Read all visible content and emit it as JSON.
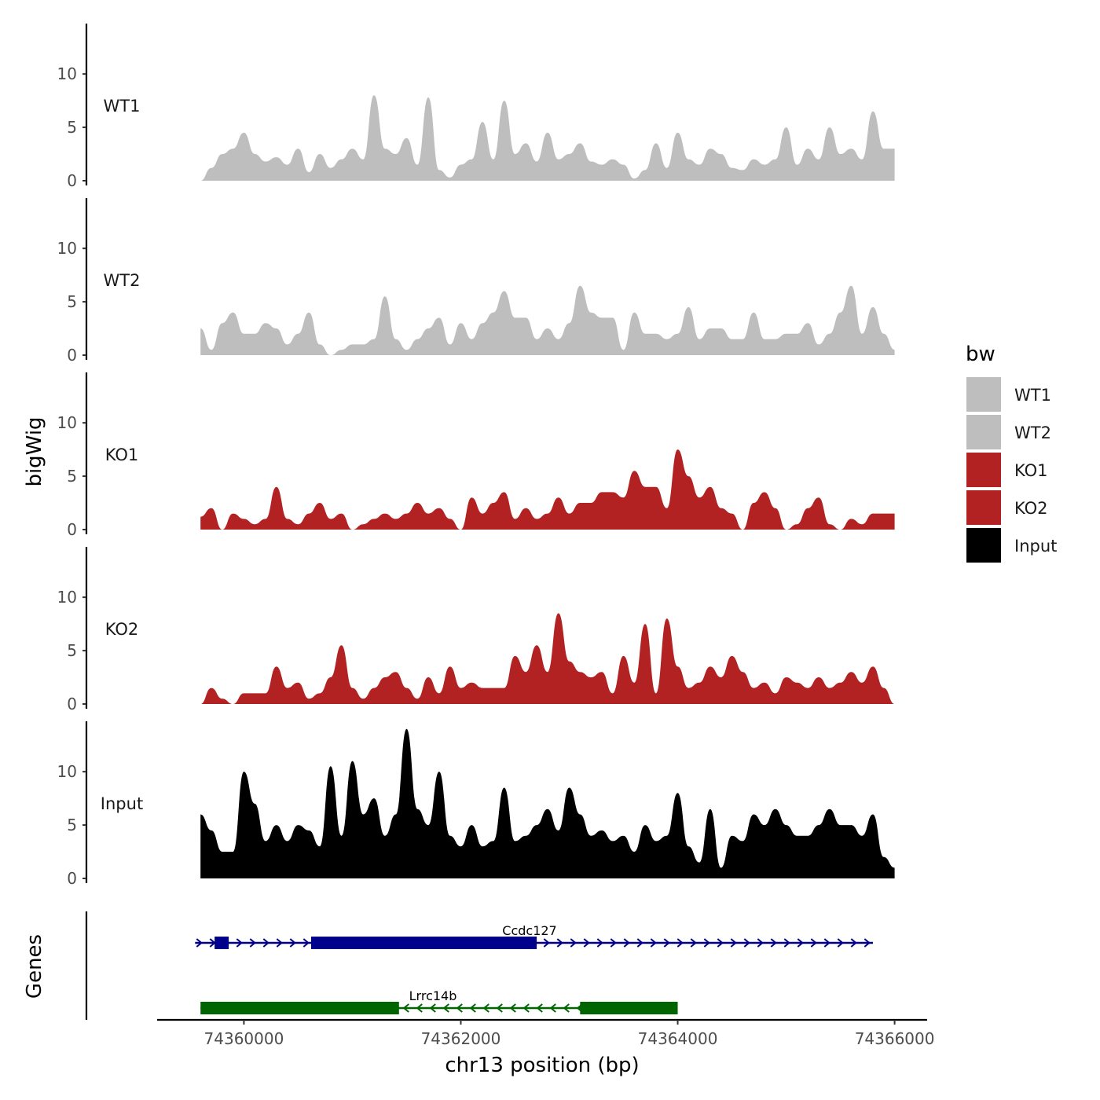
{
  "chart_data": {
    "type": "area",
    "title": "",
    "ylabel": "bigWig",
    "xlabel": "chr13 position (bp)",
    "xlim": [
      74359200,
      74366300
    ],
    "x_ticks": [
      74360000,
      74362000,
      74364000,
      74366000
    ],
    "x_tick_labels": [
      "74360000",
      "74362000",
      "74364000",
      "74366000"
    ],
    "ylim": [
      0,
      14.5
    ],
    "y_ticks": [
      0,
      5,
      10
    ],
    "y_tick_labels": [
      "0",
      "5",
      "10"
    ],
    "legend": {
      "title": "bw",
      "placement": "right",
      "entries": [
        {
          "label": "WT1",
          "color": "#bebebe"
        },
        {
          "label": "WT2",
          "color": "#bebebe"
        },
        {
          "label": "KO1",
          "color": "#b22222"
        },
        {
          "label": "KO2",
          "color": "#b22222"
        },
        {
          "label": "Input",
          "color": "#000000"
        }
      ]
    },
    "series": [
      {
        "name": "WT1",
        "color": "#bebebe",
        "x": [
          74359600,
          74359700,
          74359800,
          74359900,
          74360000,
          74360100,
          74360200,
          74360300,
          74360400,
          74360500,
          74360600,
          74360700,
          74360800,
          74360900,
          74361000,
          74361100,
          74361200,
          74361300,
          74361400,
          74361500,
          74361600,
          74361700,
          74361800,
          74361900,
          74362000,
          74362100,
          74362200,
          74362300,
          74362400,
          74362500,
          74362600,
          74362700,
          74362800,
          74362900,
          74363000,
          74363100,
          74363200,
          74363300,
          74363400,
          74363500,
          74363600,
          74363700,
          74363800,
          74363900,
          74364000,
          74364100,
          74364200,
          74364300,
          74364400,
          74364500,
          74364600,
          74364700,
          74364800,
          74364900,
          74365000,
          74365100,
          74365200,
          74365300,
          74365400,
          74365500,
          74365600,
          74365700,
          74365800,
          74365900,
          74366000
        ],
        "values": [
          0,
          1.2,
          2.5,
          3,
          4.5,
          2.5,
          1.8,
          2.2,
          1.5,
          3,
          0.8,
          2.5,
          1.2,
          2,
          3,
          2,
          8,
          3,
          2.5,
          4,
          1.5,
          7.8,
          1,
          0.3,
          1.5,
          2,
          5.5,
          2,
          7.5,
          2.5,
          3.5,
          1.8,
          4.5,
          2,
          2.5,
          3.5,
          1.8,
          1.5,
          2,
          1.5,
          0.2,
          1,
          3.5,
          1.2,
          4.5,
          2,
          1.5,
          3,
          2.5,
          1.2,
          1,
          2,
          1.5,
          2,
          5,
          1.5,
          3,
          2,
          5,
          2.5,
          3,
          2,
          6.5,
          3,
          3
        ]
      },
      {
        "name": "WT2",
        "color": "#bebebe",
        "x": [
          74359600,
          74359700,
          74359800,
          74359900,
          74360000,
          74360100,
          74360200,
          74360300,
          74360400,
          74360500,
          74360600,
          74360700,
          74360800,
          74360900,
          74361000,
          74361100,
          74361200,
          74361300,
          74361400,
          74361500,
          74361600,
          74361700,
          74361800,
          74361900,
          74362000,
          74362100,
          74362200,
          74362300,
          74362400,
          74362500,
          74362600,
          74362700,
          74362800,
          74362900,
          74363000,
          74363100,
          74363200,
          74363300,
          74363400,
          74363500,
          74363600,
          74363700,
          74363800,
          74363900,
          74364000,
          74364100,
          74364200,
          74364300,
          74364400,
          74364500,
          74364600,
          74364700,
          74364800,
          74364900,
          74365000,
          74365100,
          74365200,
          74365300,
          74365400,
          74365500,
          74365600,
          74365700,
          74365800,
          74365900,
          74366000
        ],
        "values": [
          2.5,
          0.5,
          3,
          4,
          2,
          2,
          3,
          2.5,
          1,
          2,
          4,
          1,
          0,
          0.5,
          1,
          1,
          1.5,
          5.5,
          1.5,
          0.5,
          1.5,
          2.5,
          3.5,
          1,
          3,
          1.5,
          3,
          4,
          6,
          3.5,
          3.5,
          1.5,
          2.5,
          1.5,
          3,
          6.5,
          4,
          3.5,
          3.5,
          0.5,
          4,
          2,
          2,
          1.5,
          2,
          4.5,
          1.5,
          2.5,
          2.5,
          1.5,
          1.5,
          4,
          1.5,
          1.5,
          2,
          2,
          3,
          1,
          2,
          4,
          6.5,
          2,
          4.5,
          2,
          0.5
        ]
      },
      {
        "name": "KO1",
        "color": "#b22222",
        "x": [
          74359600,
          74359700,
          74359800,
          74359900,
          74360000,
          74360100,
          74360200,
          74360300,
          74360400,
          74360500,
          74360600,
          74360700,
          74360800,
          74360900,
          74361000,
          74361100,
          74361200,
          74361300,
          74361400,
          74361500,
          74361600,
          74361700,
          74361800,
          74361900,
          74362000,
          74362100,
          74362200,
          74362300,
          74362400,
          74362500,
          74362600,
          74362700,
          74362800,
          74362900,
          74363000,
          74363100,
          74363200,
          74363300,
          74363400,
          74363500,
          74363600,
          74363700,
          74363800,
          74363900,
          74364000,
          74364100,
          74364200,
          74364300,
          74364400,
          74364500,
          74364600,
          74364700,
          74364800,
          74364900,
          74365000,
          74365100,
          74365200,
          74365300,
          74365400,
          74365500,
          74365600,
          74365700,
          74365800,
          74365900,
          74366000
        ],
        "values": [
          1.2,
          2,
          0,
          1.5,
          1,
          0.5,
          1,
          4,
          1,
          0.5,
          1.5,
          2.5,
          1,
          1.5,
          0,
          0.5,
          1,
          1.5,
          1,
          1.5,
          2.5,
          1.5,
          2,
          1,
          0,
          3,
          1.5,
          2.5,
          3.5,
          1,
          2,
          1,
          1.5,
          3,
          1.5,
          2.5,
          2.5,
          3.5,
          3.5,
          3,
          5.5,
          4,
          4,
          2,
          7.5,
          5,
          3,
          4,
          2,
          1.5,
          0,
          2.5,
          3.5,
          2,
          0,
          0.5,
          2,
          3,
          0.5,
          0,
          1,
          0.5,
          1.5,
          1.5,
          1.5
        ]
      },
      {
        "name": "KO2",
        "color": "#b22222",
        "x": [
          74359600,
          74359700,
          74359800,
          74359900,
          74360000,
          74360100,
          74360200,
          74360300,
          74360400,
          74360500,
          74360600,
          74360700,
          74360800,
          74360900,
          74361000,
          74361100,
          74361200,
          74361300,
          74361400,
          74361500,
          74361600,
          74361700,
          74361800,
          74361900,
          74362000,
          74362100,
          74362200,
          74362300,
          74362400,
          74362500,
          74362600,
          74362700,
          74362800,
          74362900,
          74363000,
          74363100,
          74363200,
          74363300,
          74363400,
          74363500,
          74363600,
          74363700,
          74363800,
          74363900,
          74364000,
          74364100,
          74364200,
          74364300,
          74364400,
          74364500,
          74364600,
          74364700,
          74364800,
          74364900,
          74365000,
          74365100,
          74365200,
          74365300,
          74365400,
          74365500,
          74365600,
          74365700,
          74365800,
          74365900,
          74366000
        ],
        "values": [
          0,
          1.5,
          0.5,
          0,
          1,
          1,
          1,
          3.5,
          1.5,
          2,
          0.5,
          1,
          2.5,
          5.5,
          1.5,
          0.5,
          1.5,
          2.5,
          3,
          1.5,
          0.5,
          2.5,
          1,
          3.5,
          1.5,
          2,
          1.5,
          1.5,
          1.5,
          4.5,
          3,
          5.5,
          3,
          8.5,
          4,
          3,
          2.5,
          3,
          1,
          4.5,
          2,
          7.5,
          1,
          8,
          3.5,
          1.5,
          2,
          3.5,
          2.5,
          4.5,
          3,
          1.5,
          2,
          1,
          2.5,
          2,
          1.5,
          2.5,
          1.5,
          2,
          3,
          2,
          3.5,
          1.5,
          0
        ]
      },
      {
        "name": "Input",
        "color": "#000000",
        "x": [
          74359600,
          74359700,
          74359800,
          74359900,
          74360000,
          74360100,
          74360200,
          74360300,
          74360400,
          74360500,
          74360600,
          74360700,
          74360800,
          74360900,
          74361000,
          74361100,
          74361200,
          74361300,
          74361400,
          74361500,
          74361600,
          74361700,
          74361800,
          74361900,
          74362000,
          74362100,
          74362200,
          74362300,
          74362400,
          74362500,
          74362600,
          74362700,
          74362800,
          74362900,
          74363000,
          74363100,
          74363200,
          74363300,
          74363400,
          74363500,
          74363600,
          74363700,
          74363800,
          74363900,
          74364000,
          74364100,
          74364200,
          74364300,
          74364400,
          74364500,
          74364600,
          74364700,
          74364800,
          74364900,
          74365000,
          74365100,
          74365200,
          74365300,
          74365400,
          74365500,
          74365600,
          74365700,
          74365800,
          74365900,
          74366000
        ],
        "values": [
          6,
          4.5,
          2.5,
          2.5,
          10,
          7,
          3.5,
          5,
          3.5,
          5,
          4.5,
          3,
          10.5,
          4,
          11,
          6,
          7.5,
          4,
          6,
          14,
          6.5,
          5,
          10,
          4,
          3,
          5,
          3,
          3.5,
          8.5,
          3.5,
          4,
          5,
          6.5,
          4.5,
          8.5,
          6,
          4,
          4.5,
          3.5,
          4,
          2.5,
          5,
          3.5,
          4,
          8,
          3,
          1.5,
          6.5,
          1,
          4,
          3.5,
          6,
          5,
          6.5,
          5,
          4,
          4,
          5,
          6.5,
          5,
          5,
          4,
          6,
          2,
          1
        ]
      }
    ],
    "panels": [
      "WT1",
      "WT2",
      "KO1",
      "KO2",
      "Input"
    ],
    "genes_track": {
      "label": "Genes",
      "genes": [
        {
          "name": "Ccdc127",
          "strand": "+",
          "color": "#00008b",
          "start": 74359550,
          "end": 74365800,
          "exons": [
            [
              74359730,
              74359860
            ],
            [
              74360620,
              74362700
            ]
          ]
        },
        {
          "name": "Lrrc14b",
          "strand": "-",
          "color": "#006400",
          "start": 74359600,
          "end": 74364000,
          "exons": [
            [
              74359600,
              74361430
            ],
            [
              74363100,
              74364000
            ]
          ]
        }
      ]
    }
  }
}
